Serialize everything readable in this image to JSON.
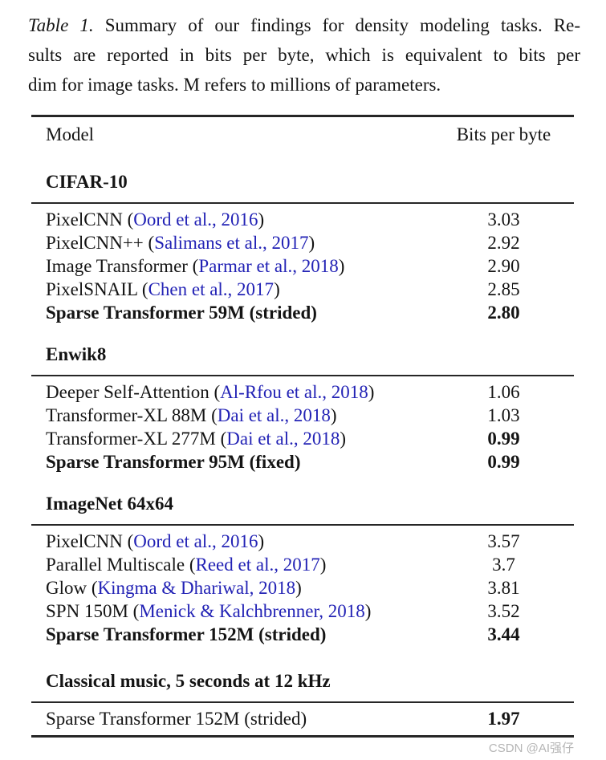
{
  "caption": {
    "label": "Table 1.",
    "lines": [
      "Summary of our findings for density modeling tasks. Re-",
      "sults are reported in bits per byte, which is equivalent to bits per",
      "dim for image tasks. M refers to millions of parameters."
    ]
  },
  "colors": {
    "link_blue": "#2222b5",
    "text": "#141414",
    "rule": "#262626",
    "watermark_gray": "#b5b5b5"
  },
  "table": {
    "col_model": "Model",
    "col_value": "Bits per byte",
    "sections": [
      {
        "title": "CIFAR-10",
        "rows": [
          {
            "pre": "PixelCNN (",
            "cite": "Oord et al., 2016",
            "post": ")",
            "value": "3.03",
            "bold_model": false,
            "bold_value": false
          },
          {
            "pre": "PixelCNN++ (",
            "cite": "Salimans et al., 2017",
            "post": ")",
            "value": "2.92",
            "bold_model": false,
            "bold_value": false
          },
          {
            "pre": "Image Transformer (",
            "cite": "Parmar et al., 2018",
            "post": ")",
            "value": "2.90",
            "bold_model": false,
            "bold_value": false
          },
          {
            "pre": "PixelSNAIL (",
            "cite": "Chen et al., 2017",
            "post": ")",
            "value": "2.85",
            "bold_model": false,
            "bold_value": false
          },
          {
            "pre": "Sparse Transformer 59M (strided)",
            "cite": "",
            "post": "",
            "value": "2.80",
            "bold_model": true,
            "bold_value": true
          }
        ]
      },
      {
        "title": "Enwik8",
        "rows": [
          {
            "pre": "Deeper Self-Attention (",
            "cite": "Al-Rfou et al., 2018",
            "post": ")",
            "value": "1.06",
            "bold_model": false,
            "bold_value": false
          },
          {
            "pre": "Transformer-XL 88M (",
            "cite": "Dai et al., 2018",
            "post": ")",
            "value": "1.03",
            "bold_model": false,
            "bold_value": false
          },
          {
            "pre": "Transformer-XL 277M (",
            "cite": "Dai et al., 2018",
            "post": ")",
            "value": "0.99",
            "bold_model": false,
            "bold_value": true
          },
          {
            "pre": "Sparse Transformer 95M (fixed)",
            "cite": "",
            "post": "",
            "value": "0.99",
            "bold_model": true,
            "bold_value": true
          }
        ]
      },
      {
        "title": "ImageNet 64x64",
        "rows": [
          {
            "pre": "PixelCNN (",
            "cite": "Oord et al., 2016",
            "post": ")",
            "value": "3.57",
            "bold_model": false,
            "bold_value": false
          },
          {
            "pre": "Parallel Multiscale (",
            "cite": "Reed et al., 2017",
            "post": ")",
            "value": "3.7",
            "bold_model": false,
            "bold_value": false
          },
          {
            "pre": "Glow (",
            "cite": "Kingma & Dhariwal, 2018",
            "post": ")",
            "value": "3.81",
            "bold_model": false,
            "bold_value": false
          },
          {
            "pre": "SPN 150M (",
            "cite": "Menick & Kalchbrenner, 2018",
            "post": ")",
            "value": "3.52",
            "bold_model": false,
            "bold_value": false
          },
          {
            "pre": "Sparse Transformer 152M (strided)",
            "cite": "",
            "post": "",
            "value": "3.44",
            "bold_model": true,
            "bold_value": true
          }
        ]
      },
      {
        "title": "Classical music, 5 seconds at 12 kHz",
        "rows": [
          {
            "pre": "Sparse Transformer 152M (strided)",
            "cite": "",
            "post": "",
            "value": "1.97",
            "bold_model": false,
            "bold_value": true
          }
        ]
      }
    ]
  },
  "watermark": "CSDN @AI强仔"
}
